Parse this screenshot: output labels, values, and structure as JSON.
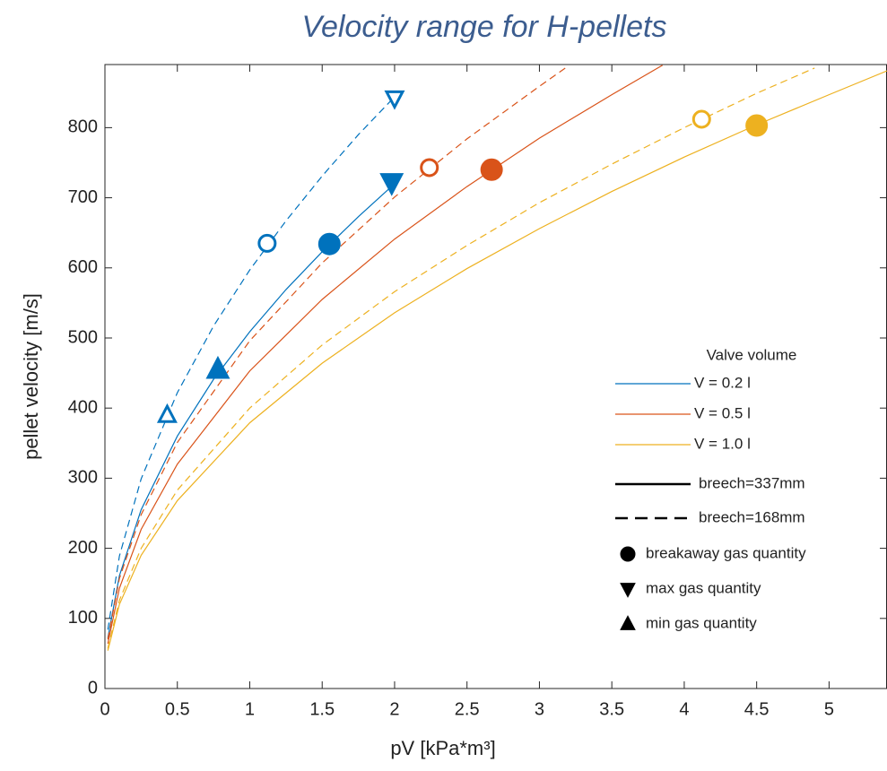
{
  "chart_data": {
    "type": "line",
    "title": "Velocity range for H-pellets",
    "xlabel": "pV [kPa*m³]",
    "ylabel": "pellet velocity [m/s]",
    "xlim": [
      0,
      5.4
    ],
    "ylim": [
      0,
      890
    ],
    "xticks": [
      0,
      0.5,
      1,
      1.5,
      2,
      2.5,
      3,
      3.5,
      4,
      4.5,
      5
    ],
    "yticks": [
      0,
      100,
      200,
      300,
      400,
      500,
      600,
      700,
      800
    ],
    "series": [
      {
        "color": "#0072BD",
        "dash": false,
        "x": [
          0.02,
          0.1,
          0.25,
          0.5,
          0.75,
          1,
          1.25,
          1.5,
          1.75,
          2
        ],
        "values": [
          72,
          161,
          255,
          360,
          441,
          509,
          569,
          623,
          673,
          720
        ]
      },
      {
        "color": "#0072BD",
        "dash": true,
        "x": [
          0.02,
          0.1,
          0.25,
          0.5,
          0.75,
          1,
          1.25,
          1.5,
          1.75,
          2
        ],
        "values": [
          84,
          189,
          299,
          422,
          517,
          597,
          667,
          731,
          790,
          844
        ]
      },
      {
        "color": "#D95319",
        "dash": false,
        "x": [
          0.02,
          0.1,
          0.25,
          0.5,
          1,
          1.5,
          2,
          2.5,
          3,
          3.5,
          3.85
        ],
        "values": [
          64,
          143,
          227,
          320,
          453,
          555,
          641,
          716,
          785,
          847,
          889
        ]
      },
      {
        "color": "#D95319",
        "dash": true,
        "x": [
          0.02,
          0.1,
          0.25,
          0.5,
          1,
          1.5,
          2,
          2.5,
          3,
          3.2
        ],
        "values": [
          70,
          157,
          248,
          351,
          496,
          607,
          701,
          784,
          859,
          888
        ]
      },
      {
        "color": "#EDB120",
        "dash": false,
        "x": [
          0.02,
          0.1,
          0.25,
          0.5,
          1,
          1.5,
          2,
          2.5,
          3,
          3.5,
          4,
          4.5,
          5,
          5.4
        ],
        "values": [
          54,
          120,
          190,
          268,
          379,
          464,
          536,
          599,
          656,
          709,
          758,
          804,
          847,
          881
        ]
      },
      {
        "color": "#EDB120",
        "dash": true,
        "x": [
          0.02,
          0.1,
          0.25,
          0.5,
          1,
          1.5,
          2,
          2.5,
          3,
          3.5,
          4,
          4.5,
          4.9
        ],
        "values": [
          57,
          126,
          200,
          283,
          400,
          490,
          566,
          632,
          693,
          748,
          800,
          849,
          885
        ]
      }
    ],
    "points": [
      {
        "marker": "up",
        "filled": false,
        "color": "#0072BD",
        "x": 0.43,
        "y": 390
      },
      {
        "marker": "up",
        "filled": true,
        "color": "#0072BD",
        "x": 0.78,
        "y": 455
      },
      {
        "marker": "circle",
        "filled": false,
        "color": "#0072BD",
        "x": 1.12,
        "y": 635
      },
      {
        "marker": "circle",
        "filled": true,
        "color": "#0072BD",
        "x": 1.55,
        "y": 634
      },
      {
        "marker": "down",
        "filled": true,
        "color": "#0072BD",
        "x": 1.98,
        "y": 722
      },
      {
        "marker": "down",
        "filled": false,
        "color": "#0072BD",
        "x": 2.0,
        "y": 842
      },
      {
        "marker": "circle",
        "filled": false,
        "color": "#D95319",
        "x": 2.24,
        "y": 743
      },
      {
        "marker": "circle",
        "filled": true,
        "color": "#D95319",
        "x": 2.67,
        "y": 740
      },
      {
        "marker": "circle",
        "filled": false,
        "color": "#EDB120",
        "x": 4.12,
        "y": 812
      },
      {
        "marker": "circle",
        "filled": true,
        "color": "#EDB120",
        "x": 4.5,
        "y": 803
      }
    ],
    "legend": {
      "title": "Valve volume",
      "volumes": [
        {
          "name": "V = 0.2 l",
          "color": "#0072BD"
        },
        {
          "name": "V = 0.5 l",
          "color": "#D95319"
        },
        {
          "name": "V = 1.0 l",
          "color": "#EDB120"
        }
      ],
      "styles": [
        {
          "name": "breech=337mm",
          "dash": false
        },
        {
          "name": "breech=168mm",
          "dash": true
        }
      ],
      "markers": [
        {
          "name": "breakaway gas quantity",
          "marker": "circle"
        },
        {
          "name": "max gas quantity",
          "marker": "down"
        },
        {
          "name": "min gas quantity",
          "marker": "up"
        }
      ]
    }
  }
}
